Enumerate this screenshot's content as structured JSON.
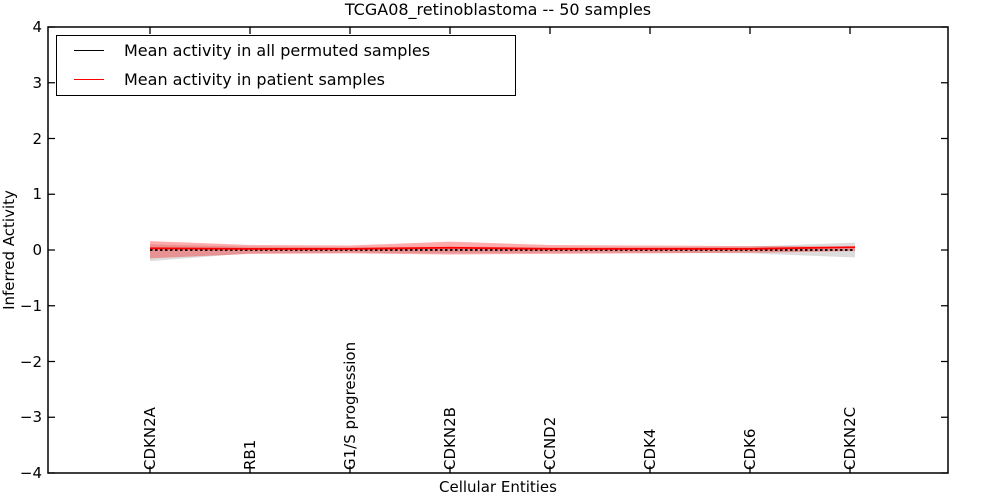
{
  "chart_data": {
    "type": "line",
    "title": "TCGA08_retinoblastoma -- 50 samples",
    "xlabel": "Cellular Entities",
    "ylabel": "Inferred Activity",
    "ylim": [
      -4,
      4
    ],
    "yticks": [
      4,
      3,
      2,
      1,
      0,
      -1,
      -2,
      -3,
      -4
    ],
    "grid": false,
    "legend_position": "upper left",
    "categories": [
      "CDKN2A",
      "RB1",
      "G1/S progression",
      "CDKN2B",
      "CCND2",
      "CDK4",
      "CDK6",
      "CDKN2C"
    ],
    "series": [
      {
        "name": "Mean activity in all permuted samples",
        "color": "#000000",
        "line_style": "dotted",
        "values": [
          0,
          0,
          0,
          0,
          0,
          0,
          0,
          0
        ],
        "band_upper": [
          0.1,
          0.06,
          0.05,
          0.06,
          0.05,
          0.05,
          0.06,
          0.13
        ],
        "band_lower": [
          -0.2,
          -0.06,
          -0.05,
          -0.06,
          -0.05,
          -0.05,
          -0.06,
          -0.13
        ],
        "band_fill": "rgba(130,130,130,0.28)"
      },
      {
        "name": "Mean activity in patient samples",
        "color": "#ff0000",
        "line_style": "solid",
        "values": [
          0.03,
          0.02,
          0.02,
          0.04,
          0.02,
          0.02,
          0.02,
          0.05
        ],
        "band_upper": [
          0.16,
          0.09,
          0.08,
          0.15,
          0.09,
          0.08,
          0.07,
          0.06
        ],
        "band_lower": [
          -0.15,
          -0.07,
          -0.06,
          -0.08,
          -0.07,
          -0.06,
          -0.05,
          -0.02
        ],
        "band_fill": "rgba(255,0,0,0.33)"
      }
    ]
  }
}
